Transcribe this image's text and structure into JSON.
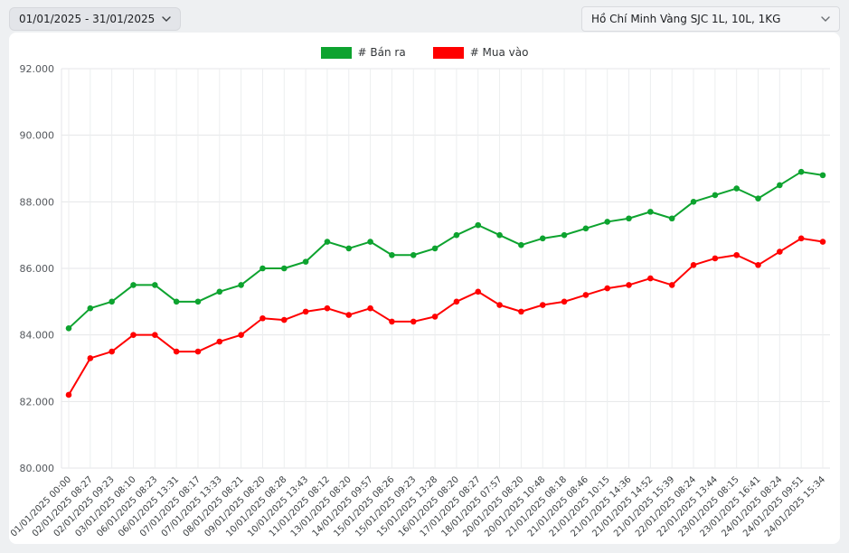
{
  "header": {
    "date_range": "01/01/2025 - 31/01/2025",
    "product_selector": "Hồ Chí Minh Vàng SJC 1L, 10L, 1KG"
  },
  "colors": {
    "sell": "#0da32f",
    "buy": "#ff0000",
    "page_bg": "#eef0f2",
    "card_bg": "#ffffff",
    "grid_h": "#e4e6e8",
    "grid_v": "#eceeef",
    "tick_text": "#55595e",
    "xlabel_text": "#3c4043"
  },
  "chart_data": {
    "type": "line",
    "title": "",
    "xlabel": "",
    "ylabel": "",
    "legend_position": "top",
    "grid": true,
    "marker": "circle",
    "ylim": [
      80000,
      92000
    ],
    "yticks": {
      "values": [
        80000,
        82000,
        84000,
        86000,
        88000,
        90000,
        92000
      ],
      "labels": [
        "80.000",
        "82.000",
        "84.000",
        "86.000",
        "88.000",
        "90.000",
        "92.000"
      ]
    },
    "x": [
      "01/01/2025 00:00",
      "02/01/2025 08:27",
      "02/01/2025 09:23",
      "03/01/2025 08:10",
      "06/01/2025 08:23",
      "06/01/2025 13:31",
      "07/01/2025 08:17",
      "07/01/2025 13:33",
      "08/01/2025 08:21",
      "09/01/2025 08:20",
      "10/01/2025 08:28",
      "10/01/2025 13:43",
      "11/01/2025 08:12",
      "13/01/2025 08:20",
      "14/01/2025 09:57",
      "15/01/2025 08:26",
      "15/01/2025 09:23",
      "15/01/2025 13:28",
      "16/01/2025 08:20",
      "17/01/2025 08:27",
      "18/01/2025 07:57",
      "20/01/2025 08:20",
      "20/01/2025 10:48",
      "21/01/2025 08:18",
      "21/01/2025 08:46",
      "21/01/2025 10:15",
      "21/01/2025 14:36",
      "21/01/2025 14:52",
      "21/01/2025 15:39",
      "22/01/2025 08:24",
      "22/01/2025 13:44",
      "23/01/2025 08:15",
      "23/01/2025 16:41",
      "24/01/2025 08:24",
      "24/01/2025 09:51",
      "24/01/2025 15:34"
    ],
    "series": [
      {
        "name": "# Bán ra",
        "color": "#0da32f",
        "values": [
          84200,
          84800,
          85000,
          85500,
          85500,
          85000,
          85000,
          85300,
          85500,
          86000,
          86000,
          86200,
          86800,
          86600,
          86800,
          86400,
          86400,
          86600,
          87000,
          87300,
          87000,
          86700,
          86900,
          87000,
          87200,
          87400,
          87500,
          87700,
          87500,
          88000,
          88200,
          88400,
          88100,
          88500,
          88900,
          88800
        ]
      },
      {
        "name": "# Mua vào",
        "color": "#ff0000",
        "values": [
          82200,
          83300,
          83500,
          84000,
          84000,
          83500,
          83500,
          83800,
          84000,
          84500,
          84450,
          84700,
          84800,
          84600,
          84800,
          84400,
          84400,
          84550,
          85000,
          85300,
          84900,
          84700,
          84900,
          85000,
          85200,
          85400,
          85500,
          85700,
          85500,
          86100,
          86300,
          86400,
          86100,
          86500,
          86900,
          86800
        ]
      }
    ]
  }
}
